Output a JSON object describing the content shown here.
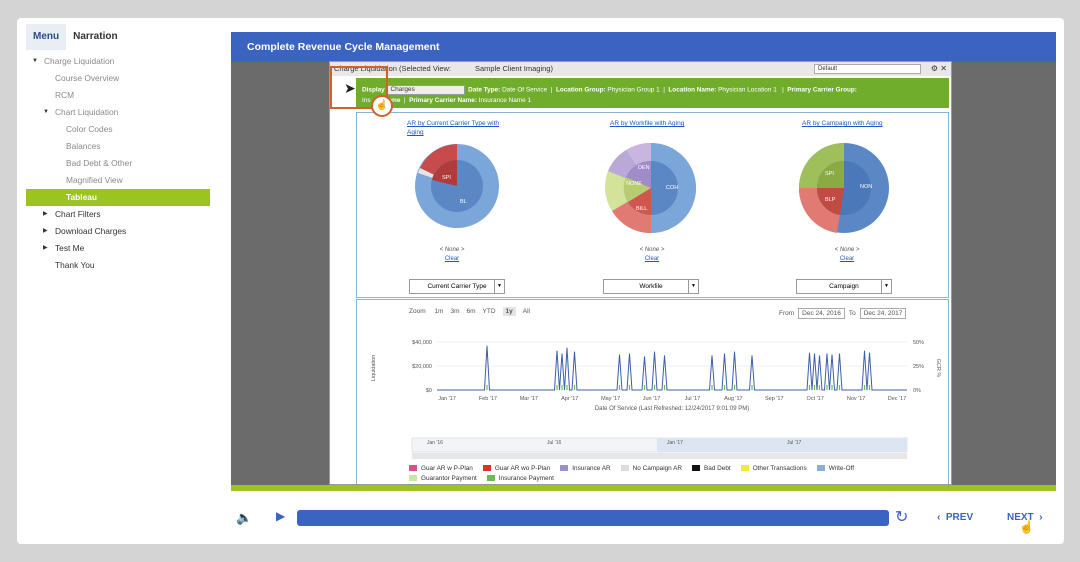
{
  "sidebar": {
    "tabs": [
      {
        "label": "Menu",
        "active": true
      },
      {
        "label": "Narration",
        "active": false
      }
    ],
    "items": [
      {
        "label": "Charge Liquidation",
        "level": 0,
        "arrow": "down",
        "dim": true
      },
      {
        "label": "Course Overview",
        "level": 1,
        "dim": true
      },
      {
        "label": "RCM",
        "level": 1,
        "dim": true
      },
      {
        "label": "Chart Liquidation",
        "level": 1,
        "arrow": "down",
        "dim": true
      },
      {
        "label": "Color Codes",
        "level": 2,
        "dim": true
      },
      {
        "label": "Balances",
        "level": 2,
        "dim": true
      },
      {
        "label": "Bad Debt & Other",
        "level": 2,
        "dim": true
      },
      {
        "label": "Magnified View",
        "level": 2,
        "dim": true
      },
      {
        "label": "Tableau",
        "level": 2,
        "selected": true
      },
      {
        "label": "Chart Filters",
        "level": 1,
        "arrow": "right"
      },
      {
        "label": "Download Charges",
        "level": 1,
        "arrow": "right"
      },
      {
        "label": "Test Me",
        "level": 1,
        "arrow": "right"
      },
      {
        "label": "Thank You",
        "level": 1
      }
    ]
  },
  "stage": {
    "title": "Complete Revenue Cycle Management"
  },
  "app": {
    "title_left": "Charge Liquidation (Selected View:",
    "selected_view": "Sample Client Imaging)",
    "view_dropdown": "Default",
    "filters": {
      "display_label": "Display",
      "display_value": "Charges",
      "date_type_label": "Date Type:",
      "date_type_value": "Date Of Service",
      "location_group_label": "Location Group:",
      "location_group_value": "Physician Group 1",
      "location_name_label": "Location Name:",
      "location_name_value": "Physician Location 1",
      "primary_carrier_group_label": "Primary Carrier Group:",
      "ins_prefix": "Ins",
      "name_label": "Name",
      "primary_carrier_name_label": "Primary Carrier Name:",
      "primary_carrier_name_value": "Insurance Name 1"
    },
    "pies": [
      {
        "title_line1": "AR by Current Carrier Type with",
        "title_line2": "Aging",
        "none": "< None >",
        "clear": "Clear",
        "select": "Current Carrier Type",
        "labels": [
          "SPI",
          "BL"
        ]
      },
      {
        "title_line1": "AR by Workfile with Aging",
        "title_line2": "",
        "none": "< None >",
        "clear": "Clear",
        "select": "Workfile",
        "labels": [
          "DEN",
          "NONE",
          "COH",
          "BILL"
        ]
      },
      {
        "title_line1": "AR by Campaign with Aging",
        "title_line2": "",
        "none": "< None >",
        "clear": "Clear",
        "select": "Campaign",
        "labels": [
          "SPI",
          "NON",
          "BLP"
        ]
      }
    ],
    "timeline": {
      "zoom_label": "Zoom",
      "zoom_options": [
        "1m",
        "3m",
        "6m",
        "YTD",
        "1y",
        "All"
      ],
      "zoom_active": "1y",
      "from_label": "From",
      "from_value": "Dec 24, 2016",
      "to_label": "To",
      "to_value": "Dec 24, 2017"
    },
    "legend": [
      {
        "label": "Guar AR w P-Plan",
        "color": "#d94f8a"
      },
      {
        "label": "Guar AR wo P-Plan",
        "color": "#d9342b"
      },
      {
        "label": "Insurance AR",
        "color": "#9b8fd0"
      },
      {
        "label": "No Campaign AR",
        "color": "#dcdcdc"
      },
      {
        "label": "Bad Debt",
        "color": "#111111"
      },
      {
        "label": "Other Transactions",
        "color": "#f2e93a"
      },
      {
        "label": "Write-Off",
        "color": "#8aaed8"
      },
      {
        "label": "Guarantor Payment",
        "color": "#c9e6a3"
      },
      {
        "label": "Insurance Payment",
        "color": "#6cc04a"
      }
    ]
  },
  "chart_data": {
    "type": "line",
    "title": "",
    "xlabel": "Date Of Service (Last Refreshed: 12/24/2017 9:01:09 PM)",
    "ylabel": "Liquidation",
    "y2label": "GCR %",
    "x_ticks": [
      "Jan '17",
      "Feb '17",
      "Mar '17",
      "Apr '17",
      "May '17",
      "Jun '17",
      "Jul '17",
      "Aug '17",
      "Sep '17",
      "Oct '17",
      "Nov '17",
      "Dec '17"
    ],
    "y_ticks": [
      "$0",
      "$20,000",
      "$40,000"
    ],
    "y2_ticks": [
      "0%",
      "25%",
      "50%"
    ],
    "ylim": [
      0,
      50000
    ],
    "navigator_labels": [
      "Jan '16",
      "Jul '16",
      "Jan '17",
      "Jul '17"
    ],
    "series": [
      {
        "values": [
          0,
          0,
          0,
          0,
          0,
          0,
          0,
          0,
          0,
          0,
          0,
          0,
          0,
          0,
          0,
          0,
          0,
          0,
          0,
          0,
          46000,
          0,
          0,
          0,
          0,
          0,
          0,
          0,
          0,
          0,
          0,
          0,
          0,
          0,
          0,
          0,
          0,
          0,
          0,
          0,
          0,
          0,
          0,
          0,
          0,
          0,
          0,
          0,
          41000,
          0,
          38000,
          0,
          44000,
          0,
          0,
          40000,
          0,
          0,
          0,
          0,
          0,
          0,
          0,
          0,
          0,
          0,
          0,
          0,
          0,
          0,
          0,
          0,
          0,
          37000,
          0,
          0,
          0,
          38000,
          0,
          0,
          0,
          0,
          0,
          35000,
          0,
          0,
          0,
          40000,
          0,
          0,
          0,
          36000,
          0,
          0,
          0,
          0,
          0,
          0,
          0,
          0,
          0,
          0,
          0,
          0,
          0,
          0,
          0,
          0,
          0,
          0,
          36000,
          0,
          0,
          0,
          0,
          38000,
          0,
          0,
          0,
          40000,
          0,
          0,
          0,
          0,
          0,
          0,
          36000,
          0,
          0,
          0,
          0,
          0,
          0,
          0,
          0,
          0,
          0,
          0,
          0,
          0,
          0,
          0,
          0,
          0,
          0,
          0,
          0,
          0,
          0,
          39000,
          0,
          38000,
          0,
          36000,
          0,
          0,
          38000,
          0,
          37000,
          0,
          0,
          38000,
          0,
          0,
          0,
          0,
          0,
          0,
          0,
          0,
          0,
          41000,
          0,
          39000,
          0,
          0,
          0,
          0,
          0,
          0,
          0,
          0,
          0,
          0,
          0,
          0,
          0,
          0,
          0
        ]
      }
    ]
  }
}
